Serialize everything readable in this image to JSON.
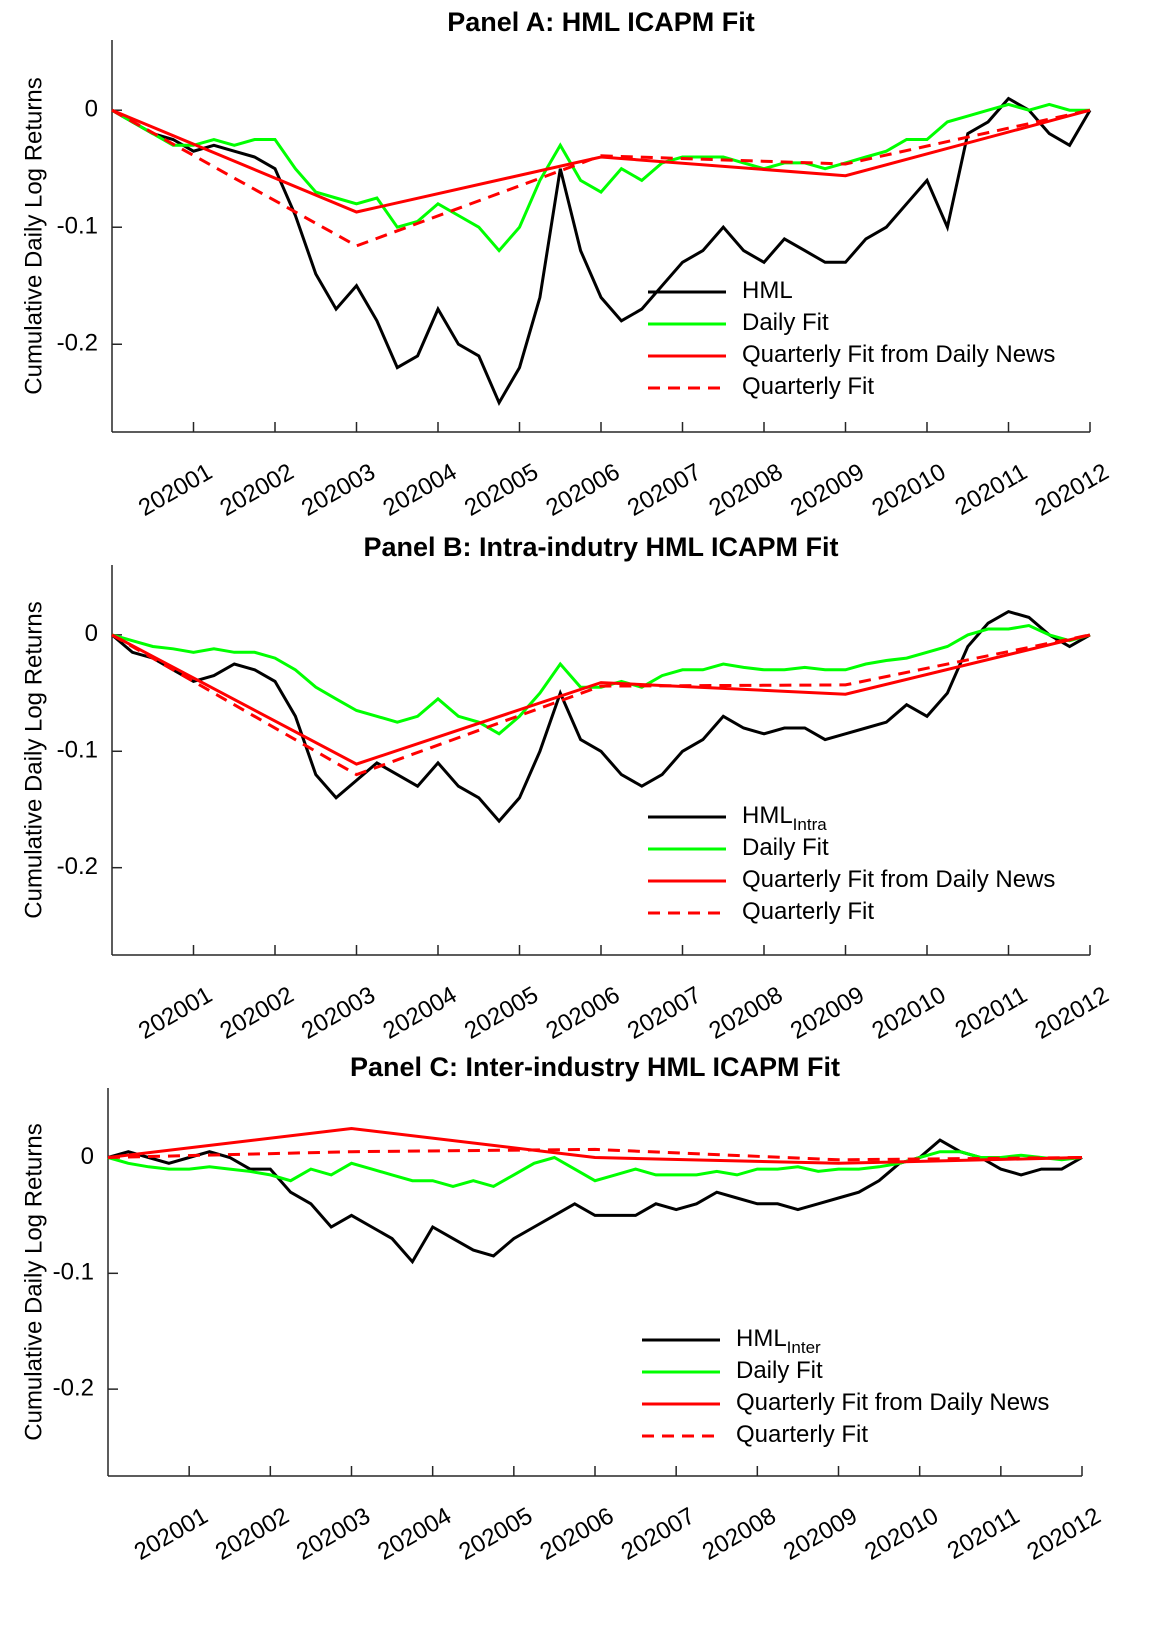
{
  "chart_data": [
    {
      "type": "line",
      "title": "Panel A: HML ICAPM Fit",
      "ylabel": "Cumulative Daily Log Returns",
      "xlim": [
        0,
        12
      ],
      "ylim": [
        -0.275,
        0.06
      ],
      "xticks": [
        {
          "value": 1,
          "label": "202001"
        },
        {
          "value": 2,
          "label": "202002"
        },
        {
          "value": 3,
          "label": "202003"
        },
        {
          "value": 4,
          "label": "202004"
        },
        {
          "value": 5,
          "label": "202005"
        },
        {
          "value": 6,
          "label": "202006"
        },
        {
          "value": 7,
          "label": "202007"
        },
        {
          "value": 8,
          "label": "202008"
        },
        {
          "value": 9,
          "label": "202009"
        },
        {
          "value": 10,
          "label": "202010"
        },
        {
          "value": 11,
          "label": "202011"
        },
        {
          "value": 12,
          "label": "202012"
        }
      ],
      "yticks": [
        -0.2,
        -0.1,
        0
      ],
      "series": [
        {
          "name": "HML",
          "color": "#000000",
          "dash": false,
          "x": [
            0,
            0.25,
            0.5,
            0.75,
            1,
            1.25,
            1.5,
            1.75,
            2,
            2.25,
            2.5,
            2.75,
            3,
            3.25,
            3.5,
            3.75,
            4,
            4.25,
            4.5,
            4.75,
            5,
            5.25,
            5.5,
            5.75,
            6,
            6.25,
            6.5,
            6.75,
            7,
            7.25,
            7.5,
            7.75,
            8,
            8.25,
            8.5,
            8.75,
            9,
            9.25,
            9.5,
            9.75,
            10,
            10.25,
            10.5,
            10.75,
            11,
            11.25,
            11.5,
            11.75,
            12
          ],
          "values": [
            0,
            -0.01,
            -0.02,
            -0.025,
            -0.035,
            -0.03,
            -0.035,
            -0.04,
            -0.05,
            -0.09,
            -0.14,
            -0.17,
            -0.15,
            -0.18,
            -0.22,
            -0.21,
            -0.17,
            -0.2,
            -0.21,
            -0.25,
            -0.22,
            -0.16,
            -0.05,
            -0.12,
            -0.16,
            -0.18,
            -0.17,
            -0.15,
            -0.13,
            -0.12,
            -0.1,
            -0.12,
            -0.13,
            -0.11,
            -0.12,
            -0.13,
            -0.13,
            -0.11,
            -0.1,
            -0.08,
            -0.06,
            -0.1,
            -0.02,
            -0.01,
            0.01,
            0,
            -0.02,
            -0.03,
            0
          ]
        },
        {
          "name": "Daily Fit",
          "color": "#00ff00",
          "dash": false,
          "x": [
            0,
            0.25,
            0.5,
            0.75,
            1,
            1.25,
            1.5,
            1.75,
            2,
            2.25,
            2.5,
            2.75,
            3,
            3.25,
            3.5,
            3.75,
            4,
            4.25,
            4.5,
            4.75,
            5,
            5.25,
            5.5,
            5.75,
            6,
            6.25,
            6.5,
            6.75,
            7,
            7.25,
            7.5,
            7.75,
            8,
            8.25,
            8.5,
            8.75,
            9,
            9.25,
            9.5,
            9.75,
            10,
            10.25,
            10.5,
            10.75,
            11,
            11.25,
            11.5,
            11.75,
            12
          ],
          "values": [
            0,
            -0.01,
            -0.02,
            -0.03,
            -0.03,
            -0.025,
            -0.03,
            -0.025,
            -0.025,
            -0.05,
            -0.07,
            -0.075,
            -0.08,
            -0.075,
            -0.1,
            -0.095,
            -0.08,
            -0.09,
            -0.1,
            -0.12,
            -0.1,
            -0.06,
            -0.03,
            -0.06,
            -0.07,
            -0.05,
            -0.06,
            -0.045,
            -0.04,
            -0.04,
            -0.04,
            -0.045,
            -0.05,
            -0.045,
            -0.045,
            -0.05,
            -0.045,
            -0.04,
            -0.035,
            -0.025,
            -0.025,
            -0.01,
            -0.005,
            0,
            0.005,
            0,
            0.005,
            0,
            0
          ]
        },
        {
          "name": "Quarterly Fit from Daily News",
          "color": "#ff0000",
          "dash": false,
          "x": [
            0,
            3,
            6,
            9,
            12
          ],
          "values": [
            0,
            -0.087,
            -0.04,
            -0.056,
            0
          ]
        },
        {
          "name": "Quarterly Fit",
          "color": "#ff0000",
          "dash": true,
          "x": [
            0,
            3,
            6,
            9,
            12
          ],
          "values": [
            0,
            -0.116,
            -0.039,
            -0.046,
            0
          ]
        }
      ]
    },
    {
      "type": "line",
      "title": "Panel B: Intra-indutry HML ICAPM Fit",
      "ylabel": "Cumulative Daily Log Returns",
      "xlim": [
        0,
        12
      ],
      "ylim": [
        -0.275,
        0.06
      ],
      "xticks": [
        {
          "value": 1,
          "label": "202001"
        },
        {
          "value": 2,
          "label": "202002"
        },
        {
          "value": 3,
          "label": "202003"
        },
        {
          "value": 4,
          "label": "202004"
        },
        {
          "value": 5,
          "label": "202005"
        },
        {
          "value": 6,
          "label": "202006"
        },
        {
          "value": 7,
          "label": "202007"
        },
        {
          "value": 8,
          "label": "202008"
        },
        {
          "value": 9,
          "label": "202009"
        },
        {
          "value": 10,
          "label": "202010"
        },
        {
          "value": 11,
          "label": "202011"
        },
        {
          "value": 12,
          "label": "202012"
        }
      ],
      "yticks": [
        -0.2,
        -0.1,
        0
      ],
      "series": [
        {
          "name": "HML",
          "name_subscript": "Intra",
          "color": "#000000",
          "dash": false,
          "x": [
            0,
            0.25,
            0.5,
            0.75,
            1,
            1.25,
            1.5,
            1.75,
            2,
            2.25,
            2.5,
            2.75,
            3,
            3.25,
            3.5,
            3.75,
            4,
            4.25,
            4.5,
            4.75,
            5,
            5.25,
            5.5,
            5.75,
            6,
            6.25,
            6.5,
            6.75,
            7,
            7.25,
            7.5,
            7.75,
            8,
            8.25,
            8.5,
            8.75,
            9,
            9.25,
            9.5,
            9.75,
            10,
            10.25,
            10.5,
            10.75,
            11,
            11.25,
            11.5,
            11.75,
            12
          ],
          "values": [
            0,
            -0.015,
            -0.02,
            -0.03,
            -0.04,
            -0.035,
            -0.025,
            -0.03,
            -0.04,
            -0.07,
            -0.12,
            -0.14,
            -0.125,
            -0.11,
            -0.12,
            -0.13,
            -0.11,
            -0.13,
            -0.14,
            -0.16,
            -0.14,
            -0.1,
            -0.05,
            -0.09,
            -0.1,
            -0.12,
            -0.13,
            -0.12,
            -0.1,
            -0.09,
            -0.07,
            -0.08,
            -0.085,
            -0.08,
            -0.08,
            -0.09,
            -0.085,
            -0.08,
            -0.075,
            -0.06,
            -0.07,
            -0.05,
            -0.01,
            0.01,
            0.02,
            0.015,
            0,
            -0.01,
            0
          ]
        },
        {
          "name": "Daily Fit",
          "color": "#00ff00",
          "dash": false,
          "x": [
            0,
            0.25,
            0.5,
            0.75,
            1,
            1.25,
            1.5,
            1.75,
            2,
            2.25,
            2.5,
            2.75,
            3,
            3.25,
            3.5,
            3.75,
            4,
            4.25,
            4.5,
            4.75,
            5,
            5.25,
            5.5,
            5.75,
            6,
            6.25,
            6.5,
            6.75,
            7,
            7.25,
            7.5,
            7.75,
            8,
            8.25,
            8.5,
            8.75,
            9,
            9.25,
            9.5,
            9.75,
            10,
            10.25,
            10.5,
            10.75,
            11,
            11.25,
            11.5,
            11.75,
            12
          ],
          "values": [
            0,
            -0.005,
            -0.01,
            -0.012,
            -0.015,
            -0.012,
            -0.015,
            -0.015,
            -0.02,
            -0.03,
            -0.045,
            -0.055,
            -0.065,
            -0.07,
            -0.075,
            -0.07,
            -0.055,
            -0.07,
            -0.075,
            -0.085,
            -0.07,
            -0.05,
            -0.025,
            -0.045,
            -0.045,
            -0.04,
            -0.045,
            -0.035,
            -0.03,
            -0.03,
            -0.025,
            -0.028,
            -0.03,
            -0.03,
            -0.028,
            -0.03,
            -0.03,
            -0.025,
            -0.022,
            -0.02,
            -0.015,
            -0.01,
            0,
            0.005,
            0.005,
            0.008,
            0,
            -0.005,
            0
          ]
        },
        {
          "name": "Quarterly Fit from Daily News",
          "color": "#ff0000",
          "dash": false,
          "x": [
            0,
            3,
            6,
            9,
            12
          ],
          "values": [
            0,
            -0.111,
            -0.041,
            -0.051,
            0
          ]
        },
        {
          "name": "Quarterly Fit",
          "color": "#ff0000",
          "dash": true,
          "x": [
            0,
            3,
            6,
            9,
            12
          ],
          "values": [
            0,
            -0.12,
            -0.044,
            -0.043,
            0
          ]
        }
      ]
    },
    {
      "type": "line",
      "title": "Panel C: Inter-industry HML ICAPM Fit",
      "ylabel": "Cumulative Daily Log Returns",
      "xlim": [
        0,
        12
      ],
      "ylim": [
        -0.275,
        0.06
      ],
      "xticks": [
        {
          "value": 1,
          "label": "202001"
        },
        {
          "value": 2,
          "label": "202002"
        },
        {
          "value": 3,
          "label": "202003"
        },
        {
          "value": 4,
          "label": "202004"
        },
        {
          "value": 5,
          "label": "202005"
        },
        {
          "value": 6,
          "label": "202006"
        },
        {
          "value": 7,
          "label": "202007"
        },
        {
          "value": 8,
          "label": "202008"
        },
        {
          "value": 9,
          "label": "202009"
        },
        {
          "value": 10,
          "label": "202010"
        },
        {
          "value": 11,
          "label": "202011"
        },
        {
          "value": 12,
          "label": "202012"
        }
      ],
      "yticks": [
        -0.2,
        -0.1,
        0
      ],
      "series": [
        {
          "name": "HML",
          "name_subscript": "Inter",
          "color": "#000000",
          "dash": false,
          "x": [
            0,
            0.25,
            0.5,
            0.75,
            1,
            1.25,
            1.5,
            1.75,
            2,
            2.25,
            2.5,
            2.75,
            3,
            3.25,
            3.5,
            3.75,
            4,
            4.25,
            4.5,
            4.75,
            5,
            5.25,
            5.5,
            5.75,
            6,
            6.25,
            6.5,
            6.75,
            7,
            7.25,
            7.5,
            7.75,
            8,
            8.25,
            8.5,
            8.75,
            9,
            9.25,
            9.5,
            9.75,
            10,
            10.25,
            10.5,
            10.75,
            11,
            11.25,
            11.5,
            11.75,
            12
          ],
          "values": [
            0,
            0.005,
            0,
            -0.005,
            0,
            0.005,
            0,
            -0.01,
            -0.01,
            -0.03,
            -0.04,
            -0.06,
            -0.05,
            -0.06,
            -0.07,
            -0.09,
            -0.06,
            -0.07,
            -0.08,
            -0.085,
            -0.07,
            -0.06,
            -0.05,
            -0.04,
            -0.05,
            -0.05,
            -0.05,
            -0.04,
            -0.045,
            -0.04,
            -0.03,
            -0.035,
            -0.04,
            -0.04,
            -0.045,
            -0.04,
            -0.035,
            -0.03,
            -0.02,
            -0.005,
            0,
            0.015,
            0.005,
            0,
            -0.01,
            -0.015,
            -0.01,
            -0.01,
            0
          ]
        },
        {
          "name": "Daily Fit",
          "color": "#00ff00",
          "dash": false,
          "x": [
            0,
            0.25,
            0.5,
            0.75,
            1,
            1.25,
            1.5,
            1.75,
            2,
            2.25,
            2.5,
            2.75,
            3,
            3.25,
            3.5,
            3.75,
            4,
            4.25,
            4.5,
            4.75,
            5,
            5.25,
            5.5,
            5.75,
            6,
            6.25,
            6.5,
            6.75,
            7,
            7.25,
            7.5,
            7.75,
            8,
            8.25,
            8.5,
            8.75,
            9,
            9.25,
            9.5,
            9.75,
            10,
            10.25,
            10.5,
            10.75,
            11,
            11.25,
            11.5,
            11.75,
            12
          ],
          "values": [
            0,
            -0.005,
            -0.008,
            -0.01,
            -0.01,
            -0.008,
            -0.01,
            -0.012,
            -0.015,
            -0.02,
            -0.01,
            -0.015,
            -0.005,
            -0.01,
            -0.015,
            -0.02,
            -0.02,
            -0.025,
            -0.02,
            -0.025,
            -0.015,
            -0.005,
            0,
            -0.01,
            -0.02,
            -0.015,
            -0.01,
            -0.015,
            -0.015,
            -0.015,
            -0.012,
            -0.015,
            -0.01,
            -0.01,
            -0.008,
            -0.012,
            -0.01,
            -0.01,
            -0.008,
            -0.005,
            0,
            0.005,
            0.005,
            0,
            0,
            0.002,
            0,
            -0.002,
            0
          ]
        },
        {
          "name": "Quarterly Fit from Daily News",
          "color": "#ff0000",
          "dash": false,
          "x": [
            0,
            3,
            6,
            9,
            12
          ],
          "values": [
            0,
            0.025,
            0,
            -0.005,
            0
          ]
        },
        {
          "name": "Quarterly Fit",
          "color": "#ff0000",
          "dash": true,
          "x": [
            0,
            3,
            6,
            9,
            12
          ],
          "values": [
            0,
            0.005,
            0.007,
            -0.002,
            0
          ]
        }
      ]
    }
  ]
}
